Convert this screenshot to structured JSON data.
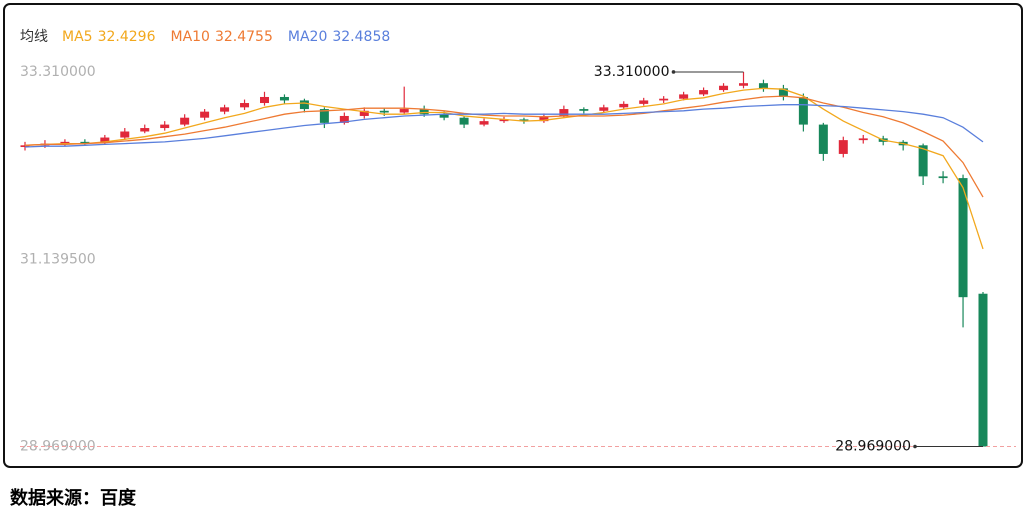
{
  "chart_data": {
    "type": "candlestick",
    "legend_title": "均线",
    "source": "数据来源：百度",
    "up_color": "#e0283a",
    "down_color": "#17875a",
    "ylim": [
      28.79,
      33.97
    ],
    "yticks": [
      {
        "value": 33.31,
        "label": "33.310000"
      },
      {
        "value": 31.1395,
        "label": "31.139500"
      },
      {
        "value": 28.969,
        "label": "28.969000"
      }
    ],
    "annotations": [
      {
        "value": 33.31,
        "label": "33.310000"
      },
      {
        "value": 28.969,
        "label": "28.969000"
      }
    ],
    "ohlc": [
      [
        32.44,
        32.5,
        32.4,
        32.46
      ],
      [
        32.46,
        32.52,
        32.43,
        32.48
      ],
      [
        32.47,
        32.53,
        32.45,
        32.5
      ],
      [
        32.5,
        32.53,
        32.46,
        32.49
      ],
      [
        32.49,
        32.58,
        32.47,
        32.55
      ],
      [
        32.55,
        32.66,
        32.53,
        32.62
      ],
      [
        32.62,
        32.7,
        32.6,
        32.66
      ],
      [
        32.66,
        32.74,
        32.63,
        32.7
      ],
      [
        32.7,
        32.82,
        32.68,
        32.78
      ],
      [
        32.78,
        32.88,
        32.75,
        32.85
      ],
      [
        32.85,
        32.93,
        32.82,
        32.9
      ],
      [
        32.9,
        32.99,
        32.87,
        32.95
      ],
      [
        32.95,
        33.08,
        32.92,
        33.02
      ],
      [
        33.02,
        33.05,
        32.94,
        32.98
      ],
      [
        32.98,
        33.0,
        32.84,
        32.88
      ],
      [
        32.88,
        32.9,
        32.66,
        32.72
      ],
      [
        32.72,
        32.84,
        32.7,
        32.8
      ],
      [
        32.8,
        32.9,
        32.77,
        32.86
      ],
      [
        32.86,
        32.89,
        32.8,
        32.84
      ],
      [
        32.84,
        33.14,
        32.82,
        32.88
      ],
      [
        32.88,
        32.92,
        32.79,
        32.82
      ],
      [
        32.82,
        32.85,
        32.75,
        32.78
      ],
      [
        32.78,
        32.8,
        32.66,
        32.7
      ],
      [
        32.7,
        32.77,
        32.68,
        32.74
      ],
      [
        32.74,
        32.79,
        32.72,
        32.76
      ],
      [
        32.76,
        32.78,
        32.71,
        32.74
      ],
      [
        32.74,
        32.83,
        32.72,
        32.8
      ],
      [
        32.8,
        32.92,
        32.78,
        32.88
      ],
      [
        32.88,
        32.9,
        32.83,
        32.86
      ],
      [
        32.86,
        32.93,
        32.84,
        32.9
      ],
      [
        32.9,
        32.97,
        32.88,
        32.94
      ],
      [
        32.94,
        33.01,
        32.92,
        32.98
      ],
      [
        32.98,
        33.03,
        32.95,
        33.0
      ],
      [
        33.0,
        33.08,
        32.98,
        33.05
      ],
      [
        33.05,
        33.13,
        33.03,
        33.1
      ],
      [
        33.1,
        33.18,
        33.08,
        33.15
      ],
      [
        33.15,
        33.31,
        33.12,
        33.18
      ],
      [
        33.18,
        33.22,
        33.08,
        33.12
      ],
      [
        33.12,
        33.16,
        32.98,
        33.02
      ],
      [
        33.02,
        33.06,
        32.62,
        32.7
      ],
      [
        32.7,
        32.72,
        32.28,
        32.36
      ],
      [
        32.36,
        32.56,
        32.32,
        32.52
      ],
      [
        32.52,
        32.58,
        32.48,
        32.54
      ],
      [
        32.54,
        32.57,
        32.46,
        32.5
      ],
      [
        32.5,
        32.52,
        32.4,
        32.46
      ],
      [
        32.46,
        32.48,
        32.0,
        32.1
      ],
      [
        32.1,
        32.16,
        32.02,
        32.08
      ],
      [
        32.08,
        32.12,
        30.35,
        30.7
      ],
      [
        30.74,
        30.76,
        28.969,
        28.969
      ]
    ],
    "series": [
      {
        "name": "MA5",
        "legend_value": 32.4296,
        "color": "#f2a81d",
        "values": [
          32.46,
          32.47,
          32.48,
          32.48,
          32.5,
          32.53,
          32.56,
          32.6,
          32.66,
          32.72,
          32.78,
          32.83,
          32.9,
          32.94,
          32.95,
          32.91,
          32.88,
          32.85,
          32.82,
          32.82,
          32.84,
          32.84,
          32.8,
          32.78,
          32.76,
          32.74,
          32.75,
          32.78,
          32.81,
          32.84,
          32.88,
          32.91,
          32.94,
          32.99,
          33.01,
          33.06,
          33.1,
          33.12,
          33.11,
          33.03,
          32.88,
          32.74,
          32.63,
          32.52,
          32.48,
          32.42,
          32.34,
          31.97,
          31.26
        ]
      },
      {
        "name": "MA10",
        "legend_value": 32.4755,
        "color": "#ee7a33",
        "values": [
          32.46,
          32.47,
          32.47,
          32.48,
          32.49,
          32.51,
          32.53,
          32.56,
          32.59,
          32.63,
          32.67,
          32.72,
          32.77,
          32.82,
          32.85,
          32.86,
          32.87,
          32.89,
          32.89,
          32.89,
          32.88,
          32.86,
          32.83,
          32.81,
          32.8,
          32.8,
          32.79,
          32.8,
          32.8,
          32.8,
          32.81,
          32.83,
          32.86,
          32.89,
          32.92,
          32.96,
          32.99,
          33.02,
          33.03,
          33.01,
          32.95,
          32.9,
          32.84,
          32.79,
          32.72,
          32.62,
          32.51,
          32.26,
          31.86
        ]
      },
      {
        "name": "MA20",
        "legend_value": 32.4858,
        "color": "#5a7fdc",
        "values": [
          32.44,
          32.45,
          32.45,
          32.46,
          32.47,
          32.48,
          32.49,
          32.5,
          32.52,
          32.54,
          32.57,
          32.6,
          32.63,
          32.66,
          32.69,
          32.71,
          32.73,
          32.76,
          32.78,
          32.8,
          32.81,
          32.82,
          32.82,
          32.82,
          32.83,
          32.82,
          32.82,
          32.82,
          32.82,
          32.82,
          32.83,
          32.84,
          32.85,
          32.86,
          32.88,
          32.89,
          32.91,
          32.92,
          32.93,
          32.93,
          32.92,
          32.91,
          32.89,
          32.87,
          32.85,
          32.82,
          32.78,
          32.67,
          32.5
        ]
      }
    ]
  }
}
